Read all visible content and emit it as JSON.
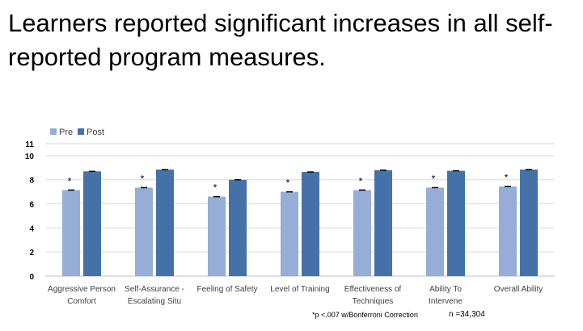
{
  "slide": {
    "title": "Learners reported significant increases in all self-reported program measures."
  },
  "chart_data": {
    "type": "bar",
    "categories": [
      [
        "Aggressive Person",
        "Comfort"
      ],
      [
        "Self-Assurance -",
        "Escalating Situ"
      ],
      [
        "Feeling of  Safety"
      ],
      [
        "Level of Training"
      ],
      [
        "Effectiveness of",
        "Techniques"
      ],
      [
        "Ability To",
        "Intervene"
      ],
      [
        "Overall Ability"
      ]
    ],
    "series": [
      {
        "name": "Pre",
        "color": "#95ADD7",
        "values": [
          7.15,
          7.35,
          6.6,
          7.0,
          7.15,
          7.35,
          7.45
        ]
      },
      {
        "name": "Post",
        "color": "#4472A8",
        "values": [
          8.7,
          8.85,
          8.0,
          8.65,
          8.8,
          8.75,
          8.85
        ]
      }
    ],
    "significance_marker": "*",
    "ylim": [
      0,
      11
    ],
    "yticks": [
      "0",
      "2",
      "4",
      "6",
      "8",
      "10",
      "11"
    ],
    "grid": true,
    "legend_position": "top-left",
    "footnote": "*p <.007 w/Bonferroni Correction",
    "sample_size": "n =34,304"
  }
}
